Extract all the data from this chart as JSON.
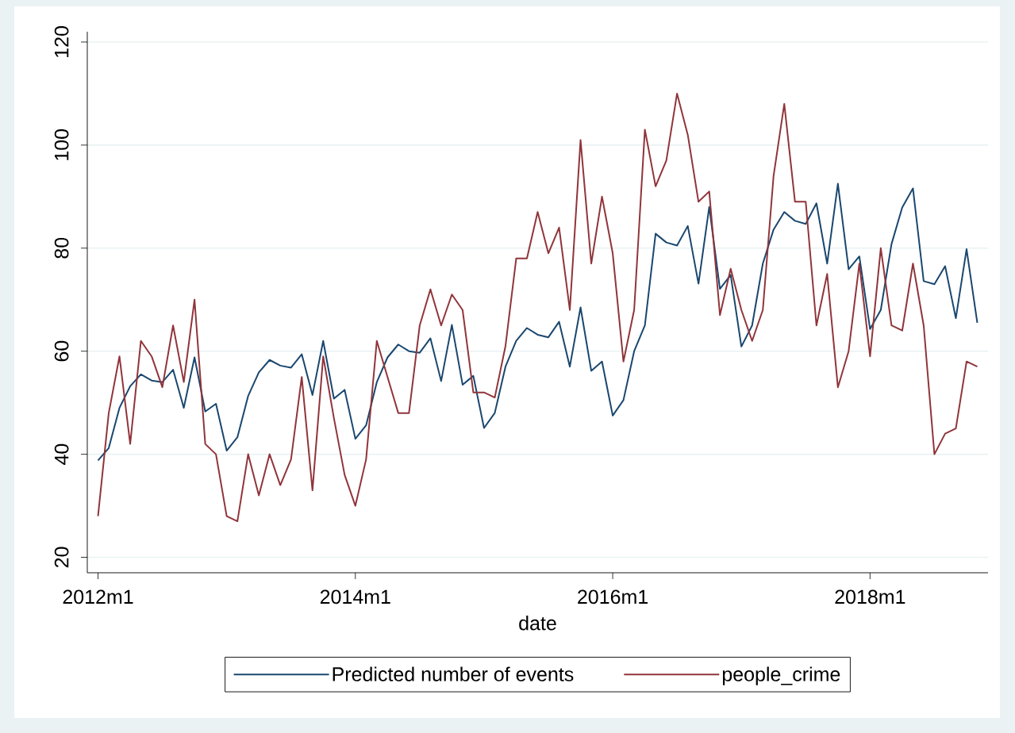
{
  "chart_data": {
    "type": "line",
    "xlabel": "date",
    "x": [
      "2012-01",
      "2012-02",
      "2012-03",
      "2012-04",
      "2012-05",
      "2012-06",
      "2012-07",
      "2012-08",
      "2012-09",
      "2012-10",
      "2012-11",
      "2012-12",
      "2013-01",
      "2013-02",
      "2013-03",
      "2013-04",
      "2013-05",
      "2013-06",
      "2013-07",
      "2013-08",
      "2013-09",
      "2013-10",
      "2013-11",
      "2013-12",
      "2014-01",
      "2014-02",
      "2014-03",
      "2014-04",
      "2014-05",
      "2014-06",
      "2014-07",
      "2014-08",
      "2014-09",
      "2014-10",
      "2014-11",
      "2014-12",
      "2015-01",
      "2015-02",
      "2015-03",
      "2015-04",
      "2015-05",
      "2015-06",
      "2015-07",
      "2015-08",
      "2015-09",
      "2015-10",
      "2015-11",
      "2015-12",
      "2016-01",
      "2016-02",
      "2016-03",
      "2016-04",
      "2016-05",
      "2016-06",
      "2016-07",
      "2016-08",
      "2016-09",
      "2016-10",
      "2016-11",
      "2016-12",
      "2017-01",
      "2017-02",
      "2017-03",
      "2017-04",
      "2017-05",
      "2017-06",
      "2017-07",
      "2017-08",
      "2017-09",
      "2017-10",
      "2017-11",
      "2017-12",
      "2018-01",
      "2018-02",
      "2018-03",
      "2018-04",
      "2018-05",
      "2018-06",
      "2018-07",
      "2018-08",
      "2018-09",
      "2018-10",
      "2018-11"
    ],
    "series": [
      {
        "name": "Predicted number of events",
        "color": "#1a476f",
        "values": [
          38.8,
          41.2,
          49,
          53.2,
          55.5,
          54.3,
          54,
          56.4,
          49,
          58.8,
          48.3,
          49.8,
          40.7,
          43.3,
          51.3,
          55.9,
          58.3,
          57.2,
          56.8,
          59.4,
          51.5,
          62,
          50.8,
          52.5,
          43,
          45.6,
          54,
          58.8,
          61.3,
          60,
          59.7,
          62.5,
          54.2,
          65.1,
          53.5,
          55.2,
          45.1,
          48,
          57,
          62,
          64.5,
          63.2,
          62.7,
          65.7,
          57,
          68.5,
          56.2,
          58,
          47.5,
          50.5,
          60,
          65,
          82.8,
          81.1,
          80.5,
          84.3,
          73.1,
          88,
          72.1,
          74.8,
          60.9,
          65,
          77,
          83.6,
          87,
          85.3,
          84.7,
          88.7,
          77,
          92.5,
          75.9,
          78.4,
          64.3,
          68,
          80.8,
          87.9,
          91.6,
          73.6,
          73,
          76.5,
          66.4,
          79.8,
          65.5
        ]
      },
      {
        "name": "people_crime",
        "color": "#90353b",
        "values": [
          28,
          48,
          59,
          42,
          62,
          59,
          53,
          65,
          54,
          70,
          42,
          40,
          28,
          27,
          40,
          32,
          40,
          34,
          39,
          55,
          33,
          59,
          47,
          36,
          30,
          39,
          62,
          55,
          48,
          48,
          65,
          72,
          65,
          71,
          68,
          52,
          52,
          51,
          61,
          78,
          78,
          87,
          79,
          84,
          68,
          101,
          77,
          90,
          79,
          58,
          68,
          103,
          92,
          97,
          110,
          102,
          89,
          91,
          67,
          76,
          68,
          62,
          68,
          94,
          108,
          89,
          89,
          65,
          75,
          53,
          60,
          77,
          59,
          80,
          65,
          64,
          77,
          65,
          40,
          44,
          45,
          58,
          57
        ]
      }
    ],
    "xlim": [
      "2011-12",
      "2018-12"
    ],
    "xticks": [
      {
        "value": "2012-01",
        "label": "2012m1"
      },
      {
        "value": "2014-01",
        "label": "2014m1"
      },
      {
        "value": "2016-01",
        "label": "2016m1"
      },
      {
        "value": "2018-01",
        "label": "2018m1"
      }
    ],
    "ylim": [
      17,
      122
    ],
    "yticks": [
      20,
      40,
      60,
      80,
      100,
      120
    ],
    "grid": "y",
    "legend": "bottom"
  }
}
